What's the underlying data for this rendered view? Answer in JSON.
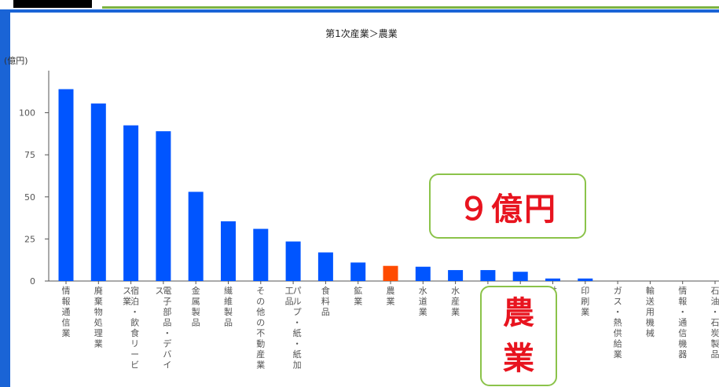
{
  "chart_data": {
    "type": "bar",
    "title": "第1次産業＞農業",
    "ylabel": "(億円)",
    "ylim": [
      0,
      125
    ],
    "yticks": [
      0,
      25,
      50,
      75,
      100
    ],
    "grid": false,
    "categories": [
      "情報通信業",
      "廃棄物処理業",
      "宿泊・飲食サービス業",
      "電子部品・デバイス",
      "金属製品",
      "繊維製品",
      "その他の不動産業",
      "パルプ・紙・紙加工品",
      "食料品",
      "鉱業",
      "農業",
      "水道業",
      "水産業",
      "",
      "",
      "林業",
      "印刷業",
      "ガス・熱供給業",
      "輸送用機械",
      "情報・通信機器",
      "石油・石炭製品"
    ],
    "tick_labels": [
      [
        "情",
        "報",
        "通",
        "信",
        "業"
      ],
      [
        "廃",
        "棄",
        "物",
        "処",
        "理",
        "業"
      ],
      [
        "宿泊・飲食リービ",
        "ス業"
      ],
      [
        "電子部品・デバイ",
        "ス"
      ],
      [
        "金",
        "属",
        "製",
        "品"
      ],
      [
        "繊",
        "維",
        "製",
        "品"
      ],
      [
        "そ",
        "の",
        "他",
        "の",
        "不",
        "動",
        "産",
        "業"
      ],
      [
        "パルプ・紙・紙加",
        "工品"
      ],
      [
        "食",
        "料",
        "品"
      ],
      [
        "鉱",
        "業"
      ],
      [
        "農",
        "業"
      ],
      [
        "水",
        "道",
        "業"
      ],
      [
        "水",
        "産",
        "業"
      ],
      [],
      [],
      [
        "林"
      ],
      [
        "印",
        "刷",
        "業"
      ],
      [
        "ガ",
        "ス",
        "・",
        "熱",
        "供",
        "給",
        "業"
      ],
      [
        "輸",
        "送",
        "用",
        "機",
        "械"
      ],
      [
        "情",
        "報",
        "・",
        "通",
        "信",
        "機",
        "器"
      ],
      [
        "石",
        "油",
        "・",
        "石",
        "炭",
        "製",
        "品"
      ]
    ],
    "values": [
      114,
      105.5,
      92.5,
      89,
      53,
      35.5,
      31,
      23.5,
      17,
      11,
      9,
      8.5,
      6.5,
      6.5,
      5.5,
      1.5,
      1.5,
      0,
      0,
      0,
      0
    ],
    "highlight_index": 10,
    "colors": {
      "bar": "#0055ff",
      "highlight": "#ff4b00",
      "axis": "#555555",
      "text": "#555555"
    }
  },
  "callouts": {
    "value": "９億円",
    "name_line1": "農",
    "name_line2": "業"
  },
  "colors": {
    "frame": "#1a64d6",
    "accent_green": "#8bc34a",
    "callout_text": "#e8141f"
  }
}
